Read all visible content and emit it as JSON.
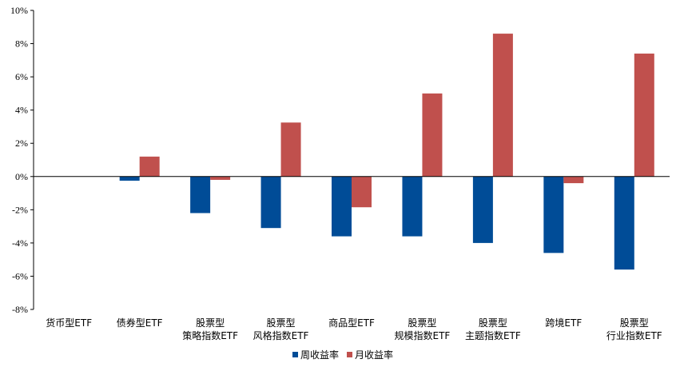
{
  "chart_data": {
    "type": "bar",
    "categories": [
      [
        "货币型ETF"
      ],
      [
        "债券型ETF"
      ],
      [
        "股票型",
        "策略指数ETF"
      ],
      [
        "股票型",
        "风格指数ETF"
      ],
      [
        "商品型ETF"
      ],
      [
        "股票型",
        "规模指数ETF"
      ],
      [
        "股票型",
        "主题指数ETF"
      ],
      [
        "跨境ETF"
      ],
      [
        "股票型",
        "行业指数ETF"
      ]
    ],
    "series": [
      {
        "name": "周收益率",
        "color": "#004C97",
        "values": [
          0.0,
          -0.25,
          -2.2,
          -3.1,
          -3.6,
          -3.6,
          -4.0,
          -4.6,
          -5.6
        ]
      },
      {
        "name": "月收益率",
        "color": "#C0504D",
        "values": [
          0.0,
          1.2,
          -0.2,
          3.25,
          -1.85,
          5.0,
          8.6,
          -0.4,
          7.4
        ]
      }
    ],
    "ylim": [
      -8,
      10
    ],
    "ytick_step": 2,
    "ytick_suffix": "%",
    "grid": false,
    "legend_position": "bottom-center"
  }
}
